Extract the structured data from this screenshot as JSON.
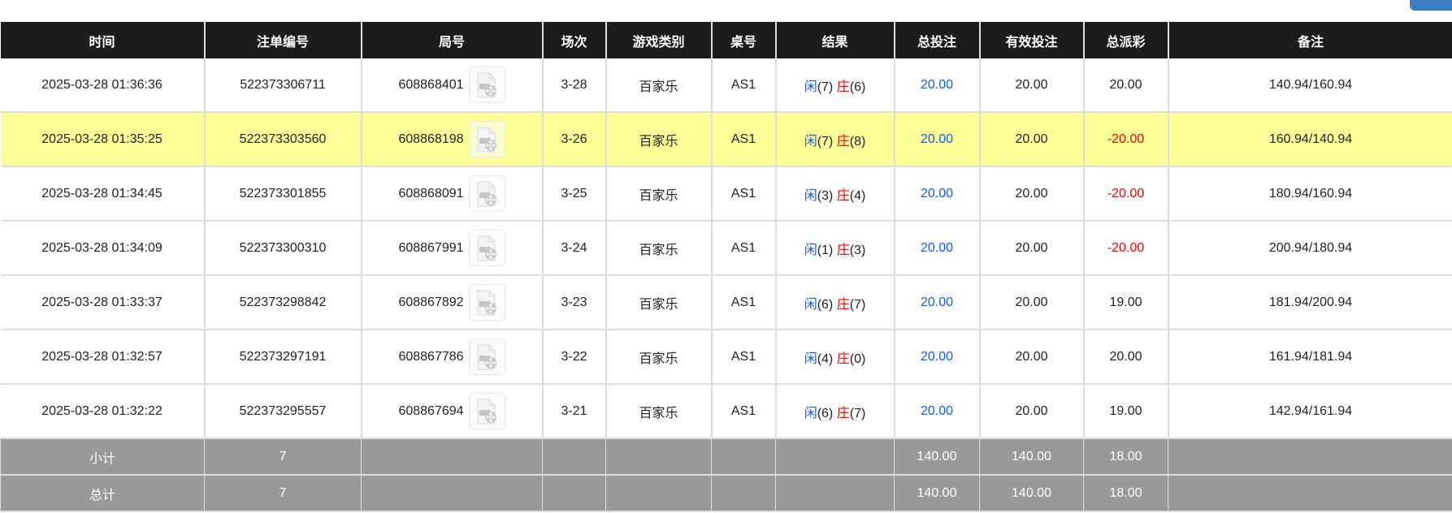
{
  "colors": {
    "header_bg": "#1c1c1c",
    "highlight_row": "#ffff99",
    "summary_bg": "#999999",
    "blue": "#0a5cff",
    "red": "#ff0000"
  },
  "headers": [
    "时间",
    "注单编号",
    "局号",
    "场次",
    "游戏类别",
    "桌号",
    "结果",
    "总投注",
    "有效投注",
    "总派彩",
    "备注"
  ],
  "rows": [
    {
      "time": "2025-03-28 01:36:36",
      "bet_id": "522373306711",
      "round": "608868401",
      "session": "3-28",
      "game": "百家乐",
      "table": "AS1",
      "player_label": "闲",
      "player": "(7)",
      "banker_label": "庄",
      "banker": "(6)",
      "total_bet": "20.00",
      "valid_bet": "20.00",
      "payout": "20.00",
      "payout_negative": false,
      "note": "140.94/160.94",
      "highlight": false
    },
    {
      "time": "2025-03-28 01:35:25",
      "bet_id": "522373303560",
      "round": "608868198",
      "session": "3-26",
      "game": "百家乐",
      "table": "AS1",
      "player_label": "闲",
      "player": "(7)",
      "banker_label": "庄",
      "banker": "(8)",
      "total_bet": "20.00",
      "valid_bet": "20.00",
      "payout": "-20.00",
      "payout_negative": true,
      "note": "160.94/140.94",
      "highlight": true
    },
    {
      "time": "2025-03-28 01:34:45",
      "bet_id": "522373301855",
      "round": "608868091",
      "session": "3-25",
      "game": "百家乐",
      "table": "AS1",
      "player_label": "闲",
      "player": "(3)",
      "banker_label": "庄",
      "banker": "(4)",
      "total_bet": "20.00",
      "valid_bet": "20.00",
      "payout": "-20.00",
      "payout_negative": true,
      "note": "180.94/160.94",
      "highlight": false
    },
    {
      "time": "2025-03-28 01:34:09",
      "bet_id": "522373300310",
      "round": "608867991",
      "session": "3-24",
      "game": "百家乐",
      "table": "AS1",
      "player_label": "闲",
      "player": "(1)",
      "banker_label": "庄",
      "banker": "(3)",
      "total_bet": "20.00",
      "valid_bet": "20.00",
      "payout": "-20.00",
      "payout_negative": true,
      "note": "200.94/180.94",
      "highlight": false
    },
    {
      "time": "2025-03-28 01:33:37",
      "bet_id": "522373298842",
      "round": "608867892",
      "session": "3-23",
      "game": "百家乐",
      "table": "AS1",
      "player_label": "闲",
      "player": "(6)",
      "banker_label": "庄",
      "banker": "(7)",
      "total_bet": "20.00",
      "valid_bet": "20.00",
      "payout": "19.00",
      "payout_negative": false,
      "note": "181.94/200.94",
      "highlight": false
    },
    {
      "time": "2025-03-28 01:32:57",
      "bet_id": "522373297191",
      "round": "608867786",
      "session": "3-22",
      "game": "百家乐",
      "table": "AS1",
      "player_label": "闲",
      "player": "(4)",
      "banker_label": "庄",
      "banker": "(0)",
      "total_bet": "20.00",
      "valid_bet": "20.00",
      "payout": "20.00",
      "payout_negative": false,
      "note": "161.94/181.94",
      "highlight": false
    },
    {
      "time": "2025-03-28 01:32:22",
      "bet_id": "522373295557",
      "round": "608867694",
      "session": "3-21",
      "game": "百家乐",
      "table": "AS1",
      "player_label": "闲",
      "player": "(6)",
      "banker_label": "庄",
      "banker": "(7)",
      "total_bet": "20.00",
      "valid_bet": "20.00",
      "payout": "19.00",
      "payout_negative": false,
      "note": "142.94/161.94",
      "highlight": false
    }
  ],
  "summaries": [
    {
      "label": "小计",
      "count": "7",
      "total_bet": "140.00",
      "valid_bet": "140.00",
      "payout": "18.00"
    },
    {
      "label": "总计",
      "count": "7",
      "total_bet": "140.00",
      "valid_bet": "140.00",
      "payout": "18.00"
    }
  ],
  "icons": {
    "replay": "video-file-icon"
  }
}
